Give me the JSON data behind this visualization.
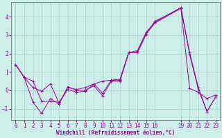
{
  "bg_color": "#cceee8",
  "grid_color": "#aacccc",
  "line_color": "#990099",
  "xlabel": "Windchill (Refroidissement éolien,°C)",
  "xlabel_color": "#990099",
  "ylim": [
    -1.6,
    4.8
  ],
  "xlim": [
    -0.5,
    23.5
  ],
  "yticks": [
    -1,
    0,
    1,
    2,
    3,
    4
  ],
  "xticks": [
    0,
    1,
    2,
    3,
    4,
    5,
    6,
    7,
    8,
    9,
    10,
    11,
    12,
    13,
    14,
    15,
    16,
    19,
    20,
    21,
    22,
    23
  ],
  "series1_x": [
    0,
    1,
    2,
    3,
    4,
    5,
    6,
    7,
    8,
    9,
    10,
    11,
    12,
    13,
    14,
    15,
    16,
    19,
    20,
    21,
    22,
    23
  ],
  "series1_y": [
    1.4,
    0.7,
    0.5,
    -0.6,
    -0.6,
    -0.65,
    0.05,
    -0.1,
    -0.05,
    0.35,
    0.5,
    0.55,
    0.6,
    2.05,
    2.05,
    3.05,
    3.75,
    4.45,
    0.1,
    -0.1,
    -0.45,
    -0.25
  ],
  "series2_x": [
    0,
    1,
    2,
    3,
    4,
    5,
    6,
    7,
    8,
    9,
    10,
    11,
    12,
    13,
    14,
    15,
    16,
    19,
    20,
    21,
    22,
    23
  ],
  "series2_y": [
    1.4,
    0.7,
    0.15,
    -0.05,
    0.35,
    -0.7,
    0.15,
    0.05,
    0.15,
    0.35,
    -0.15,
    0.55,
    0.55,
    2.05,
    2.05,
    3.05,
    3.65,
    4.45,
    1.95,
    0.05,
    -1.15,
    -0.35
  ],
  "series3_x": [
    0,
    1,
    2,
    3,
    4,
    5,
    6,
    7,
    8,
    9,
    10,
    11,
    12,
    13,
    14,
    15,
    16,
    19,
    20,
    21,
    22,
    23
  ],
  "series3_y": [
    1.4,
    0.7,
    -0.65,
    -1.25,
    -0.45,
    -0.75,
    0.2,
    0.0,
    0.0,
    0.25,
    -0.3,
    0.5,
    0.5,
    2.05,
    2.15,
    3.15,
    3.7,
    4.5,
    2.05,
    0.15,
    -1.15,
    -0.35
  ],
  "tick_fontsize": 5.5,
  "label_fontsize": 5.5
}
